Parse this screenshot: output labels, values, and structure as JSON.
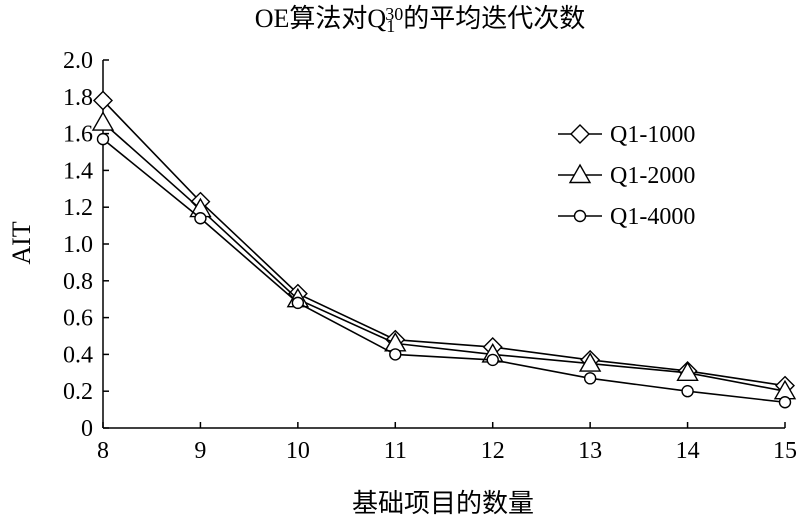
{
  "chart_data": {
    "type": "line",
    "title": "OE算法对Q",
    "title_sub": "1",
    "title_sup": "30",
    "title_suffix": "的平均迭代次数",
    "xlabel": "基础项目的数量",
    "ylabel": "AIT",
    "x": [
      8,
      9,
      10,
      11,
      12,
      13,
      14,
      15
    ],
    "xlim": [
      8,
      15
    ],
    "ylim": [
      0,
      2.0
    ],
    "yticks": [
      "0",
      "0.2",
      "0.4",
      "0.6",
      "0.8",
      "1.0",
      "1.2",
      "1.4",
      "1.6",
      "1.8",
      "2.0"
    ],
    "xticks": [
      "8",
      "9",
      "10",
      "11",
      "12",
      "13",
      "14",
      "15"
    ],
    "grid": false,
    "legend_position": "top-right",
    "series": [
      {
        "name": "Q1-1000",
        "marker": "diamond",
        "values": [
          1.78,
          1.23,
          0.73,
          0.48,
          0.44,
          0.37,
          0.31,
          0.23
        ]
      },
      {
        "name": "Q1-2000",
        "marker": "triangle",
        "values": [
          1.66,
          1.19,
          0.7,
          0.46,
          0.4,
          0.35,
          0.3,
          0.2
        ]
      },
      {
        "name": "Q1-4000",
        "marker": "circle",
        "values": [
          1.57,
          1.14,
          0.68,
          0.4,
          0.37,
          0.27,
          0.2,
          0.14
        ]
      }
    ]
  }
}
